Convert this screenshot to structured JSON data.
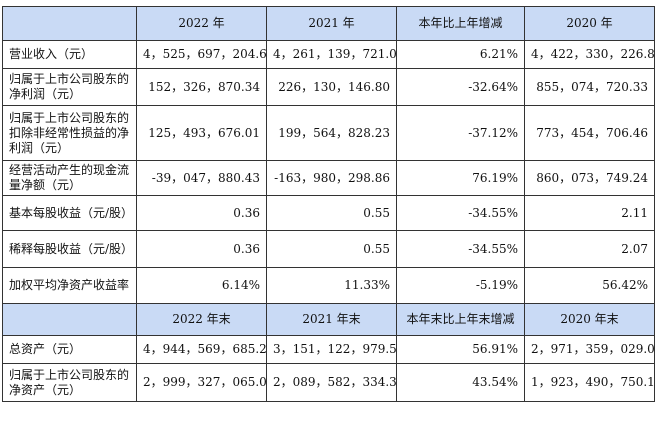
{
  "header1": [
    "2022 年",
    "2021 年",
    "本年比上年增减",
    "2020 年"
  ],
  "rows1": [
    {
      "label": "营业收入（元）",
      "values": [
        "4，525，697，204.64",
        "4，261，139，721.08",
        "6.21%",
        "4，422，330，226.81"
      ]
    },
    {
      "label": "归属于上市公司股东的净利润（元）",
      "values": [
        "152，326，870.34",
        "226，130，146.80",
        "-32.64%",
        "855，074，720.33"
      ]
    },
    {
      "label": "归属于上市公司股东的扣除非经常性损益的净利润（元）",
      "values": [
        "125，493，676.01",
        "199，564，828.23",
        "-37.12%",
        "773，454，706.46"
      ]
    },
    {
      "label": "经营活动产生的现金流量净额（元）",
      "values": [
        "-39，047，880.43",
        "-163，980，298.86",
        "76.19%",
        "860，073，749.24"
      ]
    },
    {
      "label": "基本每股收益（元/股）",
      "values": [
        "0.36",
        "0.55",
        "-34.55%",
        "2.11"
      ]
    },
    {
      "label": "稀释每股收益（元/股）",
      "values": [
        "0.36",
        "0.55",
        "-34.55%",
        "2.07"
      ]
    },
    {
      "label": "加权平均净资产收益率",
      "values": [
        "6.14%",
        "11.33%",
        "-5.19%",
        "56.42%"
      ]
    }
  ],
  "header2": [
    "2022 年末",
    "2021 年末",
    "本年末比上年末增减",
    "2020 年末"
  ],
  "rows2": [
    {
      "label": "总资产（元）",
      "values": [
        "4，944，569，685.21",
        "3，151，122，979.54",
        "56.91%",
        "2，971，359，029.06"
      ]
    },
    {
      "label": "归属于上市公司股东的净资产（元）",
      "values": [
        "2，999，327，065.08",
        "2，089，582，334.35",
        "43.54%",
        "1，923，490，750.16"
      ]
    }
  ]
}
